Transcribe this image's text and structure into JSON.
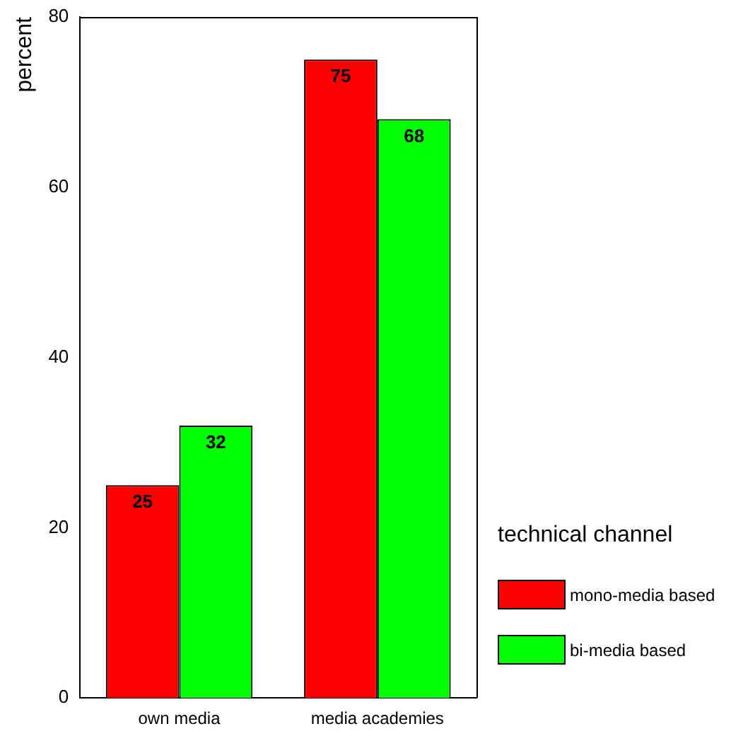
{
  "chart_data": {
    "type": "bar",
    "categories": [
      "own media",
      "media academies"
    ],
    "series": [
      {
        "name": "mono-media based",
        "color": "#ff0000",
        "values": [
          25,
          75
        ]
      },
      {
        "name": "bi-media based",
        "color": "#00ff00",
        "values": [
          32,
          68
        ]
      }
    ],
    "ylabel": "percent",
    "legend_title": "technical channel",
    "legend": "bottom right",
    "ylim": [
      0,
      80
    ],
    "yticks": [
      0,
      20,
      40,
      60,
      80
    ],
    "grid": false,
    "data_labels": true
  }
}
